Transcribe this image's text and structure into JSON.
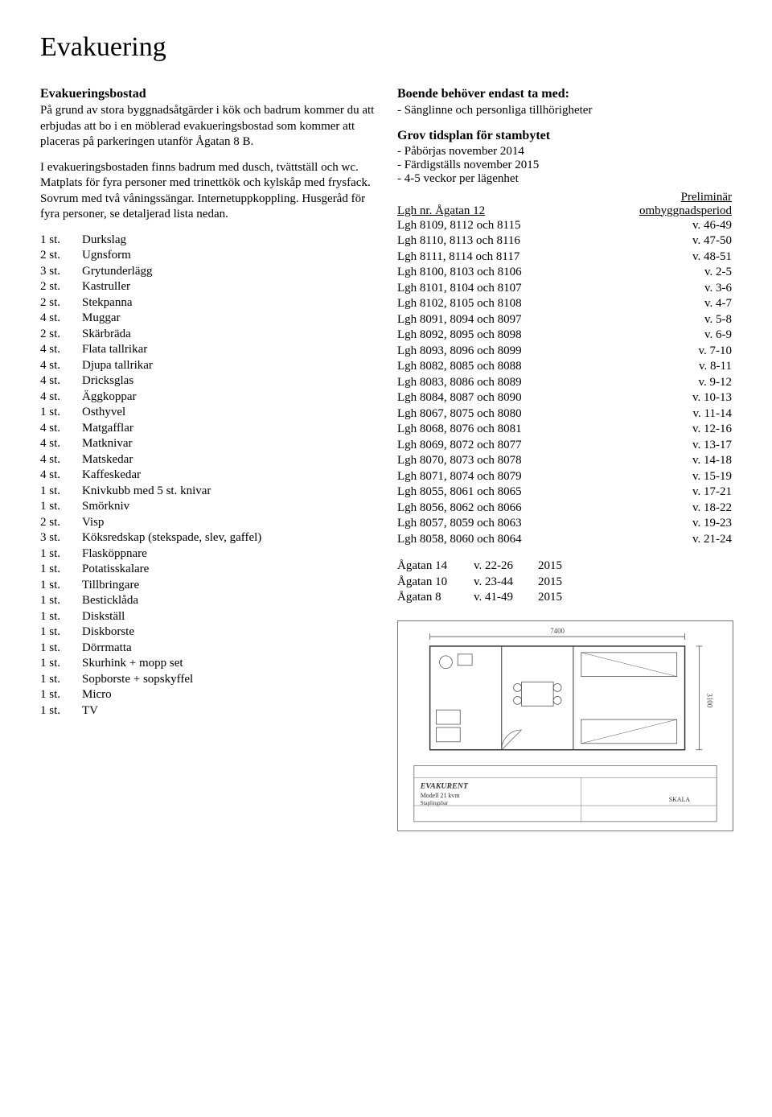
{
  "title": "Evakuering",
  "left": {
    "heading1": "Evakueringsbostad",
    "para1": "På grund av stora byggnadsåtgärder i kök och badrum kommer du att erbjudas att bo i en möblerad evakueringsbostad som kommer att placeras på parkeringen utanför Ågatan 8 B.",
    "para2": "I evakueringsbostaden finns badrum med dusch, tvättställ och wc. Matplats för fyra personer med trinettkök och kylskåp med frysfack. Sovrum med två våningssängar. Internetuppkoppling. Husgeråd för fyra personer, se detaljerad lista nedan.",
    "items": [
      {
        "q": "1 st.",
        "n": "Durkslag"
      },
      {
        "q": "2 st.",
        "n": "Ugnsform"
      },
      {
        "q": "3 st.",
        "n": "Grytunderlägg"
      },
      {
        "q": "2 st.",
        "n": "Kastruller"
      },
      {
        "q": "2 st.",
        "n": "Stekpanna"
      },
      {
        "q": "4 st.",
        "n": "Muggar"
      },
      {
        "q": "2 st.",
        "n": "Skärbräda"
      },
      {
        "q": "4 st.",
        "n": "Flata tallrikar"
      },
      {
        "q": "4 st.",
        "n": "Djupa tallrikar"
      },
      {
        "q": "4 st.",
        "n": "Dricksglas"
      },
      {
        "q": "4 st.",
        "n": "Äggkoppar"
      },
      {
        "q": "1 st.",
        "n": "Osthyvel"
      },
      {
        "q": "4 st.",
        "n": "Matgafflar"
      },
      {
        "q": "4 st.",
        "n": "Matknivar"
      },
      {
        "q": "4 st.",
        "n": "Matskedar"
      },
      {
        "q": "4 st.",
        "n": "Kaffeskedar"
      },
      {
        "q": "1 st.",
        "n": "Knivkubb med 5 st. knivar"
      },
      {
        "q": "1 st.",
        "n": "Smörkniv"
      },
      {
        "q": "2 st.",
        "n": "Visp"
      },
      {
        "q": "3 st.",
        "n": "Köksredskap (stekspade, slev, gaffel)"
      },
      {
        "q": "1 st.",
        "n": "Flasköppnare"
      },
      {
        "q": "1 st.",
        "n": "Potatisskalare"
      },
      {
        "q": "1 st.",
        "n": "Tillbringare"
      },
      {
        "q": "1 st.",
        "n": "Besticklåda"
      },
      {
        "q": "1 st.",
        "n": "Diskställ"
      },
      {
        "q": "1 st.",
        "n": "Diskborste"
      },
      {
        "q": "1 st.",
        "n": "Dörrmatta"
      },
      {
        "q": "1 st.",
        "n": "Skurhink + mopp set"
      },
      {
        "q": "1 st.",
        "n": "Sopborste + sopskyffel"
      },
      {
        "q": "1 st.",
        "n": "Micro"
      },
      {
        "q": "1 st.",
        "n": "TV"
      }
    ]
  },
  "right": {
    "heading1": "Boende behöver endast ta med:",
    "line1": "- Sänglinne och personliga tillhörigheter",
    "heading2": "Grov tidsplan för stambytet",
    "bul1": "- Påbörjas november 2014",
    "bul2": "- Färdigställs november 2015",
    "bul3": "- 4-5 veckor per lägenhet",
    "sched_hdr_right_top": "Preliminär",
    "sched_hdr_left": "Lgh nr. Ågatan 12",
    "sched_hdr_right": "ombyggnadsperiod",
    "rows": [
      {
        "l": "Lgh 8109, 8112 och 8115",
        "r": "v. 46-49"
      },
      {
        "l": "Lgh 8110, 8113 och 8116",
        "r": "v. 47-50"
      },
      {
        "l": "Lgh 8111, 8114 och 8117",
        "r": "v. 48-51"
      },
      {
        "l": "Lgh 8100, 8103 och 8106",
        "r": "v. 2-5"
      },
      {
        "l": "Lgh 8101, 8104 och 8107",
        "r": "v. 3-6"
      },
      {
        "l": "Lgh 8102, 8105 och 8108",
        "r": "v. 4-7"
      },
      {
        "l": "Lgh 8091, 8094 och 8097",
        "r": "v. 5-8"
      },
      {
        "l": "Lgh 8092, 8095 och 8098",
        "r": "v. 6-9"
      },
      {
        "l": "Lgh 8093, 8096 och 8099",
        "r": "v. 7-10"
      },
      {
        "l": "Lgh 8082, 8085 och 8088",
        "r": "v. 8-11"
      },
      {
        "l": "Lgh 8083, 8086 och 8089",
        "r": "v. 9-12"
      },
      {
        "l": "Lgh 8084, 8087 och 8090",
        "r": "v. 10-13"
      },
      {
        "l": "Lgh 8067, 8075 och 8080",
        "r": "v. 11-14"
      },
      {
        "l": "Lgh 8068, 8076 och 8081",
        "r": "v. 12-16"
      },
      {
        "l": "Lgh 8069, 8072 och 8077",
        "r": "v. 13-17"
      },
      {
        "l": "Lgh 8070, 8073 och 8078",
        "r": "v. 14-18"
      },
      {
        "l": "Lgh 8071, 8074 och 8079",
        "r": "v. 15-19"
      },
      {
        "l": "Lgh 8055, 8061 och 8065",
        "r": "v. 17-21"
      },
      {
        "l": "Lgh 8056, 8062 och 8066",
        "r": "v. 18-22"
      },
      {
        "l": "Lgh 8057, 8059 och 8063",
        "r": "v. 19-23"
      },
      {
        "l": "Lgh 8058, 8060 och 8064",
        "r": "v. 21-24"
      }
    ],
    "years": [
      {
        "a": "Ågatan 14",
        "b": "v. 22-26",
        "c": "2015"
      },
      {
        "a": "Ågatan 10",
        "b": "v. 23-44",
        "c": "2015"
      },
      {
        "a": "Ågatan 8",
        "b": "v. 41-49",
        "c": "2015"
      }
    ]
  },
  "floorplan": {
    "width_label": "7400",
    "height_label": "3100",
    "brand": "EVAKURENT",
    "model": "Modell 21 kvm",
    "sub": "Staplingsbar",
    "skala": "SKALA"
  }
}
